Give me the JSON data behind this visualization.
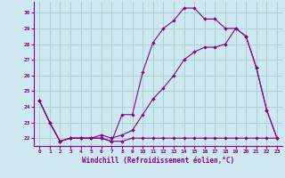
{
  "xlabel": "Windchill (Refroidissement éolien,°C)",
  "background_color": "#cde8f0",
  "grid_color": "#aad4cc",
  "line_color": "#880088",
  "xlim": [
    -0.5,
    23.5
  ],
  "ylim": [
    21.5,
    30.7
  ],
  "yticks": [
    22,
    23,
    24,
    25,
    26,
    27,
    28,
    29,
    30
  ],
  "xticks": [
    0,
    1,
    2,
    3,
    4,
    5,
    6,
    7,
    8,
    9,
    10,
    11,
    12,
    13,
    14,
    15,
    16,
    17,
    18,
    19,
    20,
    21,
    22,
    23
  ],
  "line1_x": [
    0,
    1,
    2,
    3,
    4,
    5,
    6,
    7,
    8,
    9,
    10,
    11,
    12,
    13,
    14,
    15,
    16,
    17,
    18,
    19,
    20,
    21,
    22,
    23
  ],
  "line1_y": [
    24.4,
    23.0,
    21.8,
    22.0,
    22.0,
    22.0,
    22.0,
    21.8,
    21.8,
    22.0,
    22.0,
    22.0,
    22.0,
    22.0,
    22.0,
    22.0,
    22.0,
    22.0,
    22.0,
    22.0,
    22.0,
    22.0,
    22.0,
    22.0
  ],
  "line2_x": [
    0,
    1,
    2,
    3,
    4,
    5,
    6,
    7,
    8,
    9,
    10,
    11,
    12,
    13,
    14,
    15,
    16,
    17,
    18,
    19,
    20,
    21,
    22,
    23
  ],
  "line2_y": [
    24.4,
    23.0,
    21.8,
    22.0,
    22.0,
    22.0,
    22.0,
    21.8,
    23.5,
    23.5,
    26.2,
    28.1,
    29.0,
    29.5,
    30.3,
    30.3,
    29.6,
    29.6,
    29.0,
    29.0,
    28.5,
    26.5,
    23.8,
    22.0
  ],
  "line3_x": [
    0,
    1,
    2,
    3,
    4,
    5,
    6,
    7,
    8,
    9,
    10,
    11,
    12,
    13,
    14,
    15,
    16,
    17,
    18,
    19,
    20,
    21,
    22,
    23
  ],
  "line3_y": [
    24.4,
    23.0,
    21.8,
    22.0,
    22.0,
    22.0,
    22.2,
    22.0,
    22.2,
    22.5,
    23.5,
    24.5,
    25.2,
    26.0,
    27.0,
    27.5,
    27.8,
    27.8,
    28.0,
    29.0,
    28.5,
    26.5,
    23.8,
    22.0
  ]
}
